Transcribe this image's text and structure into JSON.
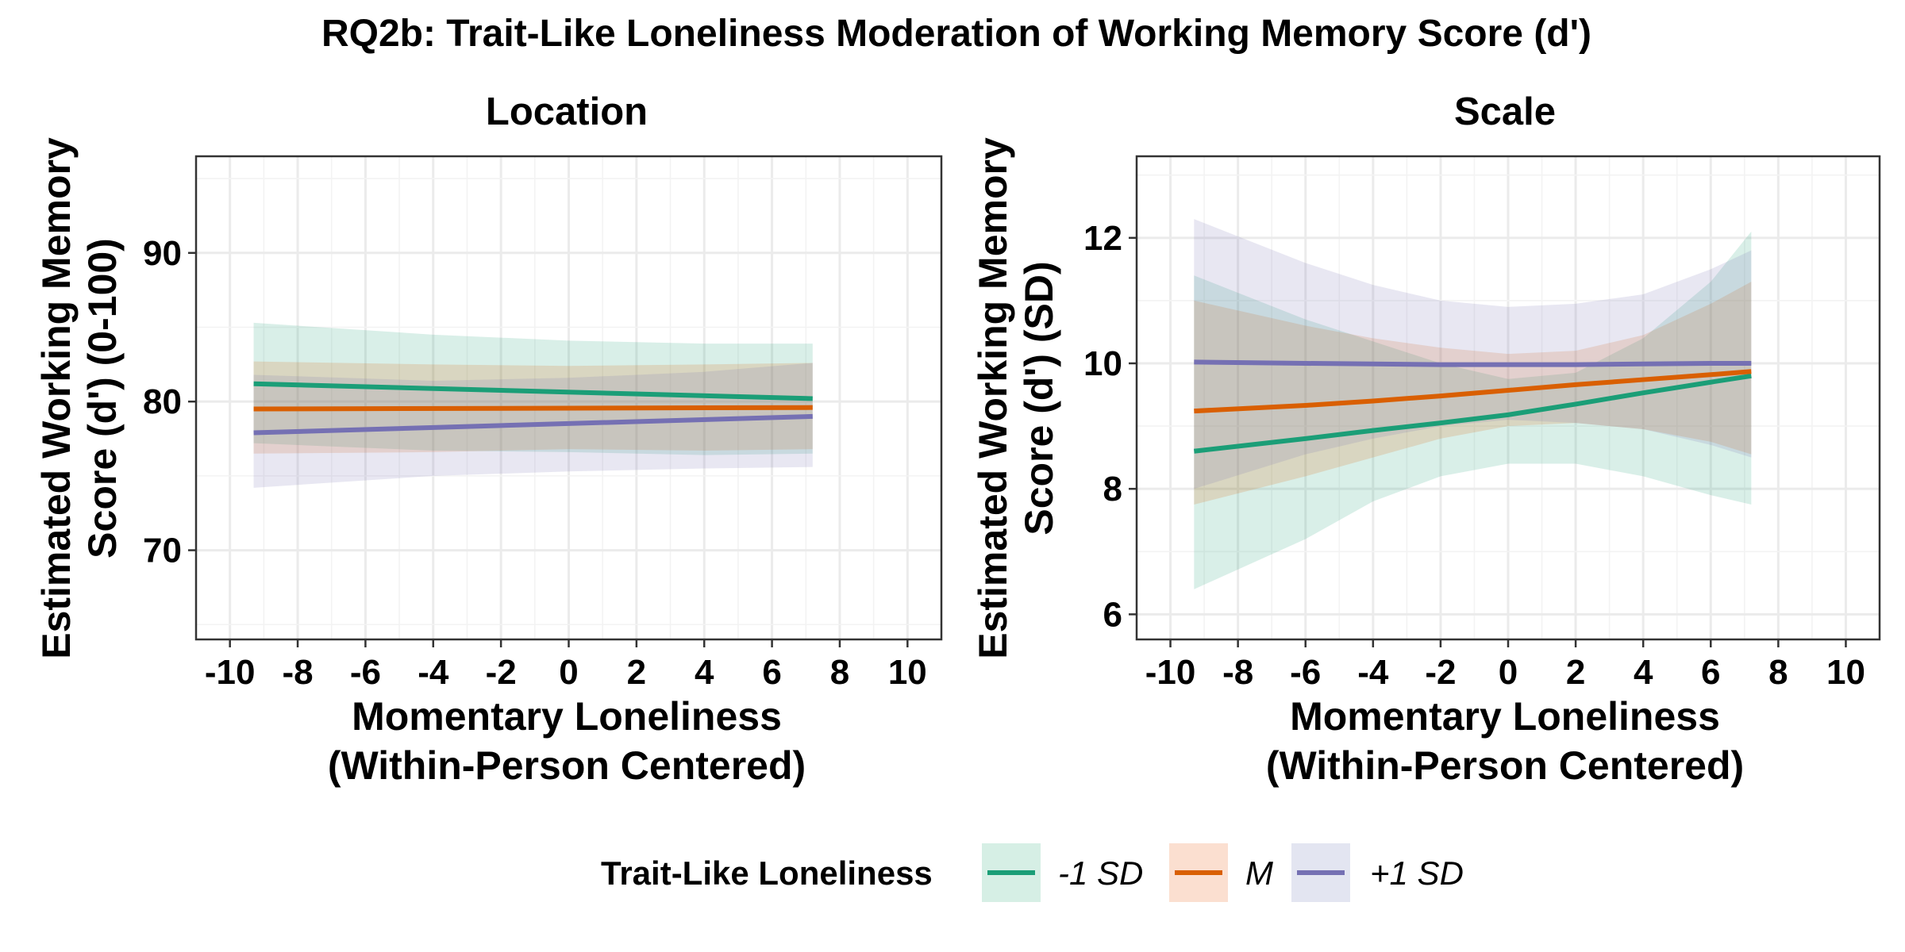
{
  "figure_title": "RQ2b: Trait-Like Loneliness Moderation of Working Memory Score (d')",
  "legend": {
    "title": "Trait-Like Loneliness",
    "items": [
      {
        "label": "-1 SD",
        "color": "#1b9e77",
        "fill": "#d6efe5"
      },
      {
        "label": "M",
        "color": "#d95f02",
        "fill": "#fbdfd0"
      },
      {
        "label": "+1 SD",
        "color": "#7570b3",
        "fill": "#e3e5f1"
      }
    ]
  },
  "chart_data": [
    {
      "type": "line",
      "title": "Location",
      "xlabel": [
        "Momentary Loneliness",
        "(Within-Person Centered)"
      ],
      "ylabel": [
        "Estimated Working Memory",
        "Score (d') (0-100)"
      ],
      "xlim": [
        -11,
        11
      ],
      "ylim": [
        64,
        96.5
      ],
      "xticks": [
        -10,
        -8,
        -6,
        -4,
        -2,
        0,
        2,
        4,
        6,
        8,
        10
      ],
      "yticks": [
        70,
        80,
        90
      ],
      "x": [
        -9.3,
        7.2
      ],
      "series": [
        {
          "name": "-1 SD",
          "color": "#1b9e77",
          "fill": "#1b9e77",
          "line": [
            [
              -9.3,
              81.2
            ],
            [
              7.2,
              80.2
            ]
          ],
          "upper": [
            [
              -9.3,
              85.3
            ],
            [
              -4,
              84.5
            ],
            [
              0,
              84.1
            ],
            [
              4,
              83.9
            ],
            [
              7.2,
              83.9
            ]
          ],
          "lower": [
            [
              -9.3,
              77.2
            ],
            [
              -4,
              76.7
            ],
            [
              0,
              76.6
            ],
            [
              4,
              76.4
            ],
            [
              7.2,
              76.5
            ]
          ]
        },
        {
          "name": "M",
          "color": "#d95f02",
          "fill": "#d95f02",
          "line": [
            [
              -9.3,
              79.5
            ],
            [
              7.2,
              79.6
            ]
          ],
          "upper": [
            [
              -9.3,
              82.7
            ],
            [
              -4,
              82.5
            ],
            [
              0,
              82.4
            ],
            [
              4,
              82.5
            ],
            [
              7.2,
              82.6
            ]
          ],
          "lower": [
            [
              -9.3,
              76.5
            ],
            [
              -4,
              76.6
            ],
            [
              0,
              76.8
            ],
            [
              4,
              76.7
            ],
            [
              7.2,
              76.8
            ]
          ]
        },
        {
          "name": "+1 SD",
          "color": "#7570b3",
          "fill": "#7570b3",
          "line": [
            [
              -9.3,
              77.9
            ],
            [
              7.2,
              79.0
            ]
          ],
          "upper": [
            [
              -9.3,
              81.8
            ],
            [
              -4,
              81.4
            ],
            [
              0,
              81.6
            ],
            [
              4,
              82.0
            ],
            [
              7.2,
              82.6
            ]
          ],
          "lower": [
            [
              -9.3,
              74.2
            ],
            [
              -4,
              75.0
            ],
            [
              0,
              75.3
            ],
            [
              4,
              75.5
            ],
            [
              7.2,
              75.6
            ]
          ]
        }
      ]
    },
    {
      "type": "line",
      "title": "Scale",
      "xlabel": [
        "Momentary Loneliness",
        "(Within-Person Centered)"
      ],
      "ylabel": [
        "Estimated Working Memory",
        "Score (d') (SD)"
      ],
      "xlim": [
        -11,
        11
      ],
      "ylim": [
        5.6,
        13.3
      ],
      "xticks": [
        -10,
        -8,
        -6,
        -4,
        -2,
        0,
        2,
        4,
        6,
        8,
        10
      ],
      "yticks": [
        6,
        8,
        10,
        12
      ],
      "x": [
        -9.3,
        7.2
      ],
      "series": [
        {
          "name": "-1 SD",
          "color": "#1b9e77",
          "fill": "#1b9e77",
          "line": [
            [
              -9.3,
              8.6
            ],
            [
              -6,
              8.8
            ],
            [
              -4,
              8.93
            ],
            [
              -2,
              9.05
            ],
            [
              0,
              9.18
            ],
            [
              2,
              9.35
            ],
            [
              4,
              9.53
            ],
            [
              6,
              9.7
            ],
            [
              7.2,
              9.8
            ]
          ],
          "upper": [
            [
              -9.3,
              11.4
            ],
            [
              -6,
              10.7
            ],
            [
              -4,
              10.35
            ],
            [
              -2,
              10.0
            ],
            [
              0,
              9.75
            ],
            [
              2,
              9.85
            ],
            [
              4,
              10.4
            ],
            [
              6,
              11.3
            ],
            [
              7.2,
              12.1
            ]
          ],
          "lower": [
            [
              -9.3,
              6.4
            ],
            [
              -6,
              7.2
            ],
            [
              -4,
              7.8
            ],
            [
              -2,
              8.2
            ],
            [
              0,
              8.4
            ],
            [
              2,
              8.4
            ],
            [
              4,
              8.2
            ],
            [
              6,
              7.9
            ],
            [
              7.2,
              7.75
            ]
          ]
        },
        {
          "name": "M",
          "color": "#d95f02",
          "fill": "#d95f02",
          "line": [
            [
              -9.3,
              9.24
            ],
            [
              -6,
              9.33
            ],
            [
              -4,
              9.4
            ],
            [
              -2,
              9.48
            ],
            [
              0,
              9.57
            ],
            [
              2,
              9.66
            ],
            [
              4,
              9.74
            ],
            [
              6,
              9.82
            ],
            [
              7.2,
              9.87
            ]
          ],
          "upper": [
            [
              -9.3,
              11.0
            ],
            [
              -6,
              10.6
            ],
            [
              -4,
              10.4
            ],
            [
              -2,
              10.25
            ],
            [
              0,
              10.15
            ],
            [
              2,
              10.2
            ],
            [
              4,
              10.45
            ],
            [
              6,
              10.95
            ],
            [
              7.2,
              11.3
            ]
          ],
          "lower": [
            [
              -9.3,
              7.75
            ],
            [
              -6,
              8.2
            ],
            [
              -4,
              8.5
            ],
            [
              -2,
              8.8
            ],
            [
              0,
              9.0
            ],
            [
              2,
              9.05
            ],
            [
              4,
              8.95
            ],
            [
              6,
              8.75
            ],
            [
              7.2,
              8.55
            ]
          ]
        },
        {
          "name": "+1 SD",
          "color": "#7570b3",
          "fill": "#7570b3",
          "line": [
            [
              -9.3,
              10.02
            ],
            [
              -6,
              10.0
            ],
            [
              -4,
              9.99
            ],
            [
              -2,
              9.98
            ],
            [
              0,
              9.98
            ],
            [
              2,
              9.98
            ],
            [
              4,
              9.99
            ],
            [
              6,
              10.0
            ],
            [
              7.2,
              10.0
            ]
          ],
          "upper": [
            [
              -9.3,
              12.3
            ],
            [
              -6,
              11.6
            ],
            [
              -4,
              11.25
            ],
            [
              -2,
              11.0
            ],
            [
              0,
              10.9
            ],
            [
              2,
              10.95
            ],
            [
              4,
              11.1
            ],
            [
              6,
              11.5
            ],
            [
              7.2,
              11.8
            ]
          ],
          "lower": [
            [
              -9.3,
              8.0
            ],
            [
              -6,
              8.55
            ],
            [
              -4,
              8.8
            ],
            [
              -2,
              9.0
            ],
            [
              0,
              9.1
            ],
            [
              2,
              9.05
            ],
            [
              4,
              8.95
            ],
            [
              6,
              8.7
            ],
            [
              7.2,
              8.5
            ]
          ]
        }
      ]
    }
  ]
}
